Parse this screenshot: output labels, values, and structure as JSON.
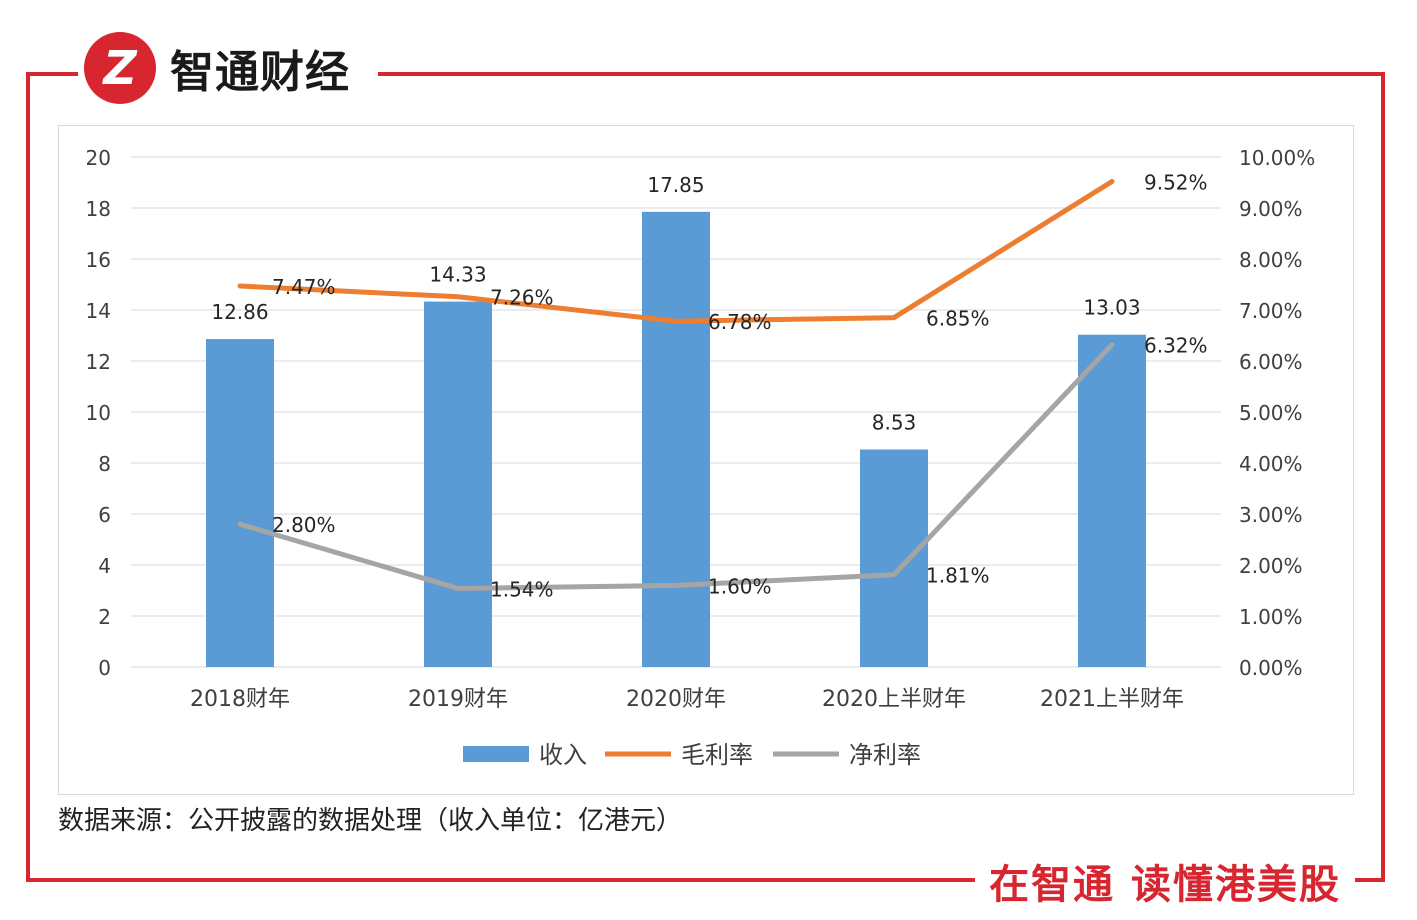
{
  "brand": {
    "name": "智通财经",
    "logo_letter": "Z"
  },
  "colors": {
    "accent": "#d7262f",
    "revenue": "#5b9bd5",
    "gross": "#ed7d31",
    "net": "#a5a5a5"
  },
  "footer": {
    "source": "数据来源：公开披露的数据处理（收入单位：亿港元）",
    "slogan": "在智通 读懂港美股"
  },
  "chart_data": {
    "type": "bar",
    "categories": [
      "2018财年",
      "2019财年",
      "2020财年",
      "2020上半财年",
      "2021上半财年"
    ],
    "series": [
      {
        "name": "收入",
        "type": "bar",
        "axis": "left",
        "values": [
          12.86,
          14.33,
          17.85,
          8.53,
          13.03
        ],
        "labels": [
          "12.86",
          "14.33",
          "17.85",
          "8.53",
          "13.03"
        ]
      },
      {
        "name": "毛利率",
        "type": "line",
        "axis": "right",
        "values": [
          7.47,
          7.26,
          6.78,
          6.85,
          9.52
        ],
        "labels": [
          "7.47%",
          "7.26%",
          "6.78%",
          "6.85%",
          "9.52%"
        ]
      },
      {
        "name": "净利率",
        "type": "line",
        "axis": "right",
        "values": [
          2.8,
          1.54,
          1.6,
          1.81,
          6.32
        ],
        "labels": [
          "2.80%",
          "1.54%",
          "1.60%",
          "1.81%",
          "6.32%"
        ]
      }
    ],
    "left_axis": {
      "min": 0,
      "max": 20,
      "ticks": [
        "0",
        "2",
        "4",
        "6",
        "8",
        "10",
        "12",
        "14",
        "16",
        "18",
        "20"
      ]
    },
    "right_axis": {
      "min": 0,
      "max": 10,
      "ticks": [
        "0.00%",
        "1.00%",
        "2.00%",
        "3.00%",
        "4.00%",
        "5.00%",
        "6.00%",
        "7.00%",
        "8.00%",
        "9.00%",
        "10.00%"
      ]
    },
    "grid": true,
    "legend_position": "bottom"
  }
}
